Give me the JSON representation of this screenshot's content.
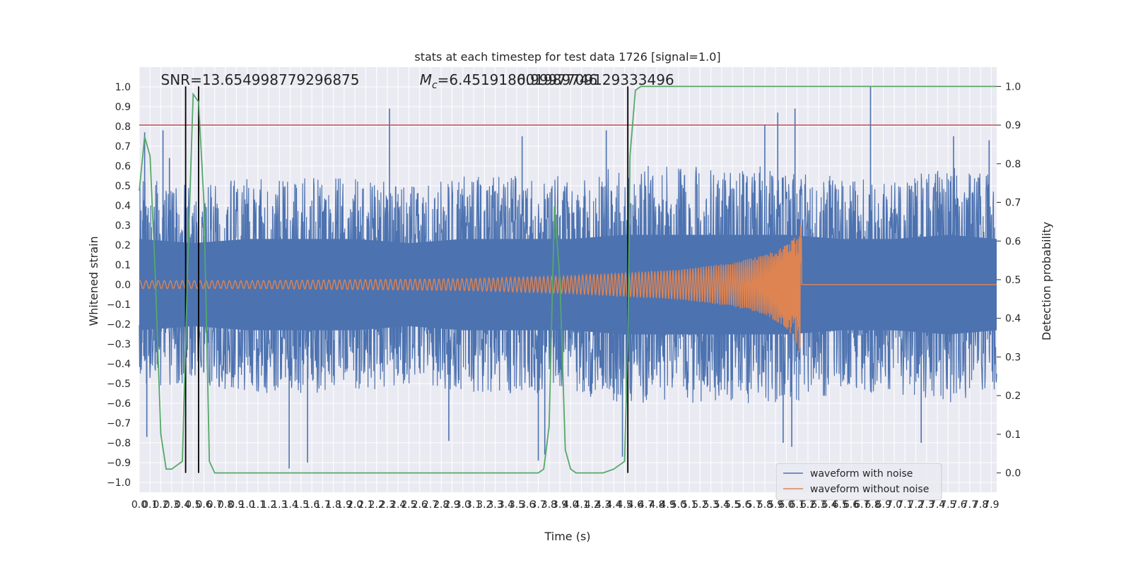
{
  "chart_data": {
    "type": "line",
    "title": "stats at each timestep for test data 1726 [signal=1.0]",
    "xlabel": "Time (s)",
    "ylabel": "Whitened strain",
    "y2label": "Detection probability",
    "xlim": [
      0.0,
      7.95
    ],
    "ylim": [
      -1.05,
      1.1
    ],
    "y2lim": [
      -0.05,
      1.05
    ],
    "x_ticks": [
      0.0,
      0.1,
      0.2,
      0.3,
      0.4,
      0.5,
      0.6,
      0.7,
      0.8,
      0.9,
      1.0,
      1.1,
      1.2,
      1.3,
      1.4,
      1.5,
      1.6,
      1.7,
      1.8,
      1.9,
      2.0,
      2.1,
      2.2,
      2.3,
      2.4,
      2.5,
      2.6,
      2.7,
      2.8,
      2.9,
      3.0,
      3.1,
      3.2,
      3.3,
      3.4,
      3.5,
      3.6,
      3.7,
      3.8,
      3.9,
      4.0,
      4.1,
      4.2,
      4.3,
      4.4,
      4.5,
      4.6,
      4.7,
      4.8,
      4.9,
      5.0,
      5.1,
      5.2,
      5.3,
      5.4,
      5.5,
      5.6,
      5.7,
      5.8,
      5.9,
      6.0,
      6.1,
      6.2,
      6.3,
      6.4,
      6.5,
      6.6,
      6.7,
      6.8,
      6.9,
      7.0,
      7.1,
      7.2,
      7.3,
      7.4,
      7.5,
      7.6,
      7.7,
      7.8,
      7.9
    ],
    "y_ticks": [
      -1.0,
      -0.9,
      -0.8,
      -0.7,
      -0.6,
      -0.5,
      -0.4,
      -0.3,
      -0.2,
      -0.1,
      0.0,
      0.1,
      0.2,
      0.3,
      0.4,
      0.5,
      0.6,
      0.7,
      0.8,
      0.9,
      1.0
    ],
    "y2_ticks": [
      0.0,
      0.1,
      0.2,
      0.3,
      0.4,
      0.5,
      0.6,
      0.7,
      0.8,
      0.9,
      1.0
    ],
    "threshold": 0.9,
    "vertical_lines": [
      0.43,
      0.55,
      4.53
    ],
    "annotations": [
      {
        "text": "SNR=13.654998779296875",
        "x": 0.2
      },
      {
        "text": "M_c=6.451918601989746",
        "x": 2.6
      },
      {
        "text": "0.9997709129333496",
        "x": 3.5
      }
    ],
    "series": [
      {
        "name": "waveform with noise",
        "color": "#4c72b0",
        "envelope_x": [
          0.0,
          0.5,
          1.0,
          1.5,
          2.0,
          2.5,
          3.0,
          3.5,
          4.0,
          4.5,
          5.0,
          5.5,
          6.0,
          6.5,
          7.0,
          7.5,
          7.95
        ],
        "envelope_hi": [
          0.55,
          0.5,
          0.55,
          0.55,
          0.55,
          0.5,
          0.55,
          0.55,
          0.55,
          0.6,
          0.6,
          0.6,
          0.6,
          0.55,
          0.55,
          0.6,
          0.55
        ],
        "envelope_lo": [
          -0.55,
          -0.5,
          -0.55,
          -0.55,
          -0.55,
          -0.5,
          -0.55,
          -0.55,
          -0.55,
          -0.6,
          -0.6,
          -0.6,
          -0.6,
          -0.55,
          -0.55,
          -0.6,
          -0.55
        ],
        "spikes": [
          {
            "x": 0.05,
            "y": 0.77
          },
          {
            "x": 0.22,
            "y": 0.78
          },
          {
            "x": 0.28,
            "y": 0.64
          },
          {
            "x": 2.32,
            "y": 0.89
          },
          {
            "x": 3.55,
            "y": 0.75
          },
          {
            "x": 4.33,
            "y": 0.78
          },
          {
            "x": 5.8,
            "y": 0.81
          },
          {
            "x": 5.92,
            "y": 0.87
          },
          {
            "x": 6.08,
            "y": 0.89
          },
          {
            "x": 6.78,
            "y": 1.0
          },
          {
            "x": 7.55,
            "y": 0.75
          },
          {
            "x": 7.88,
            "y": 0.73
          },
          {
            "x": 0.07,
            "y": -0.77
          },
          {
            "x": 1.39,
            "y": -0.93
          },
          {
            "x": 1.56,
            "y": -0.9
          },
          {
            "x": 2.87,
            "y": -0.79
          },
          {
            "x": 3.7,
            "y": -0.89
          },
          {
            "x": 3.76,
            "y": -0.86
          },
          {
            "x": 4.48,
            "y": -0.87
          },
          {
            "x": 5.97,
            "y": -0.8
          },
          {
            "x": 6.05,
            "y": -0.82
          },
          {
            "x": 7.25,
            "y": -0.8
          }
        ]
      },
      {
        "name": "waveform without noise",
        "color": "#dd8452",
        "envelope_x": [
          0.0,
          1.0,
          2.0,
          3.0,
          4.0,
          4.5,
          5.0,
          5.5,
          5.8,
          6.0,
          6.1,
          6.14,
          6.15,
          7.95
        ],
        "envelope_hi": [
          0.02,
          0.02,
          0.025,
          0.03,
          0.045,
          0.06,
          0.075,
          0.11,
          0.15,
          0.2,
          0.25,
          0.31,
          0.005,
          0.005
        ],
        "envelope_lo": [
          -0.02,
          -0.02,
          -0.025,
          -0.03,
          -0.045,
          -0.06,
          -0.075,
          -0.11,
          -0.15,
          -0.22,
          -0.3,
          -0.4,
          -0.005,
          -0.005
        ]
      },
      {
        "name": "",
        "color": "#55a868",
        "axis": "right",
        "x": [
          0.0,
          0.05,
          0.1,
          0.15,
          0.2,
          0.25,
          0.3,
          0.35,
          0.4,
          0.45,
          0.5,
          0.55,
          0.6,
          0.65,
          0.7,
          1.0,
          2.0,
          3.0,
          3.7,
          3.75,
          3.8,
          3.85,
          3.9,
          3.95,
          4.0,
          4.05,
          4.1,
          4.2,
          4.3,
          4.4,
          4.5,
          4.53,
          4.55,
          4.6,
          4.65,
          5.0,
          6.0,
          7.0,
          7.95
        ],
        "y": [
          0.73,
          0.87,
          0.82,
          0.5,
          0.1,
          0.01,
          0.01,
          0.02,
          0.03,
          0.55,
          0.98,
          0.96,
          0.7,
          0.03,
          0.0,
          0.0,
          0.0,
          0.0,
          0.0,
          0.01,
          0.12,
          0.69,
          0.5,
          0.06,
          0.01,
          0.0,
          0.0,
          0.0,
          0.0,
          0.01,
          0.03,
          0.35,
          0.82,
          0.99,
          1.0,
          1.0,
          1.0,
          1.0,
          1.0
        ]
      }
    ],
    "legend": {
      "position": "lower-right",
      "entries": [
        "waveform with noise",
        "waveform without noise"
      ]
    },
    "grid": true
  }
}
